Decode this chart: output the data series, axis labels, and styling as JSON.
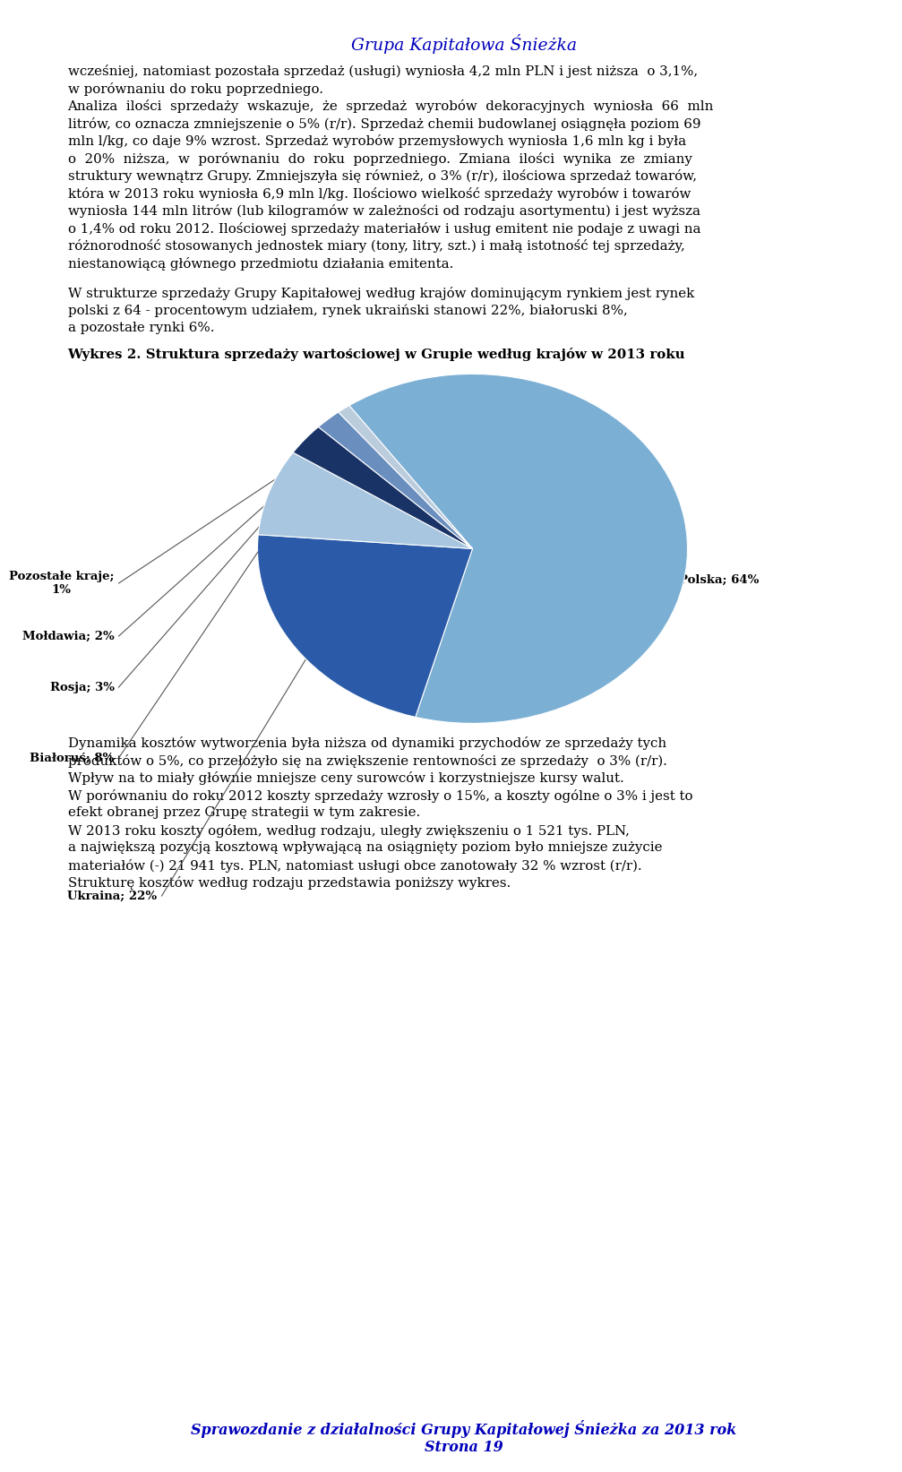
{
  "header": "Grupa Kapitałowa Śnieżka",
  "header_color": "#0000BB",
  "footer_line1": "Sprawozdanie z działalności Grupy Kapitałowej Śnieżka za 2013 rok",
  "footer_line2": "Strona 19",
  "footer_color": "#0000BB",
  "para1": "wcześniej, natomiast pozostała sprzedaż (usługi) wyniosła 4,2 mln PLN i jest niższa  o 3,1%,",
  "para1b": "w porównaniu do roku poprzedniego.",
  "para2_lines": [
    "Analiza  ilości  sprzedaży  wskazuje,  że  sprzedaż  wyrobów  dekoracyjnych  wyniosła  66  mln",
    "litrów, co oznacza zmniejszenie o 5% (r/r). Sprzedaż chemii budowlanej osiągnęła poziom 69",
    "mln l/kg, co daje 9% wzrost. Sprzedaż wyrobów przemysłowych wyniosła 1,6 mln kg i była",
    "o  20%  niższa,  w  porównaniu  do  roku  poprzedniego.  Zmiana  ilości  wynika  ze  zmiany",
    "struktury wewnątrz Grupy. Zmniejszyła się również, o 3% (r/r), ilościowa sprzedaż towarów,",
    "która w 2013 roku wyniosła 6,9 mln l/kg. Ilościowo wielkość sprzedaży wyrobów i towarów",
    "wyniosła 144 mln litrów (lub kilogramów w zależności od rodzaju asortymentu) i jest wyższa",
    "o 1,4% od roku 2012. Ilościowej sprzedaży materiałów i usług emitent nie podaje z uwagi na",
    "różnorodność stosowanych jednostek miary (tony, litry, szt.) i małą istotność tej sprzedaży,",
    "niestanowiącą głównego przedmiotu działania emitenta."
  ],
  "para3_lines": [
    "W strukturze sprzedaży Grupy Kapitałowej według krajów dominującym rynkiem jest rynek",
    "polski z 64 - procentowym udziałem, rynek ukraiński stanowi 22%, białoruski 8%,",
    "a pozostałe rynki 6%."
  ],
  "chart_title": "Wykres 2. Struktura sprzedaży wartościowej w Grupie według krajów w 2013 roku",
  "pie_slices": [
    {
      "label": "Polska; 64%",
      "value": 64,
      "color": "#7BAFD4"
    },
    {
      "label": "Ukraina; 22%",
      "value": 22,
      "color": "#2B5BA8"
    },
    {
      "label": "Białoruś; 8%",
      "value": 8,
      "color": "#A8C6E0"
    },
    {
      "label": "Rosja; 3%",
      "value": 3,
      "color": "#1A3366"
    },
    {
      "label": "Mołdawia; 2%",
      "value": 2,
      "color": "#6A8FBF"
    },
    {
      "label": "Pozostałe kraje;\n1%",
      "value": 1,
      "color": "#BBCCDD"
    }
  ],
  "para5_lines": [
    "Dynamika kosztów wytworzenia była niższa od dynamiki przychodów ze sprzedaży tych",
    "produktów o 5%, co przełożyło się na zwiększenie rentowności ze sprzedaży  o 3% (r/r).",
    "Wpływ na to miały głównie mniejsze ceny surowców i korzystniejsze kursy walut.",
    "W porównaniu do roku 2012 koszty sprzedaży wzrosły o 15%, a koszty ogólne o 3% i jest to",
    "efekt obranej przez Grupę strategii w tym zakresie.",
    "W 2013 roku koszty ogółem, według rodzaju, uległy zwiększeniu o 1 521 tys. PLN,",
    "a największą pozycją kosztową wpływającą na osiągnięty poziom było mniejsze zużycie",
    "materiałów (-) 21 941 tys. PLN, natomiast usługi obce zanotowały 32 % wzrost (r/r).",
    "Strukturę kosztów według rodzaju przedstawia poniższy wykres."
  ]
}
